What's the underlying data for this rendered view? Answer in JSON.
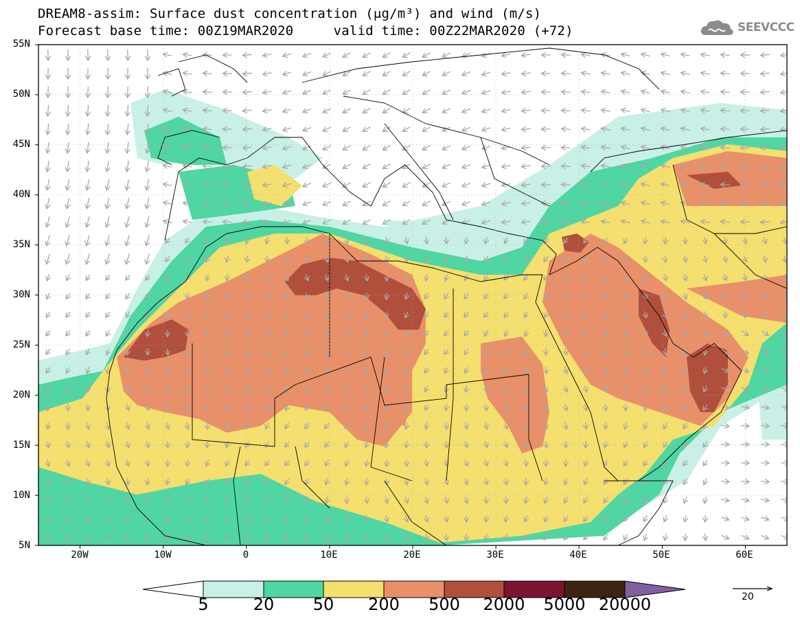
{
  "title": {
    "line1": "DREAM8-assim: Surface dust concentration (μg/m³) and wind (m/s)",
    "line2": "Forecast base time: 00Z19MAR2020     valid time: 00Z22MAR2020 (+72)"
  },
  "logo": {
    "text": "SEEVCCC",
    "icon": "cloud-icon"
  },
  "map": {
    "lat_labels": [
      "55N",
      "50N",
      "45N",
      "40N",
      "35N",
      "30N",
      "25N",
      "20N",
      "15N",
      "10N",
      "5N"
    ],
    "lon_labels": [
      "20W",
      "10W",
      "0",
      "10E",
      "20E",
      "30E",
      "40E",
      "50E",
      "60E"
    ],
    "lat_range": [
      5,
      55
    ],
    "lon_range": [
      -25,
      65
    ],
    "grid": true
  },
  "colorbar": {
    "labels": [
      "5",
      "20",
      "50",
      "200",
      "500",
      "2000",
      "5000",
      "20000"
    ],
    "colors": {
      "under": "#ffffff",
      "c5": "#c8f0e6",
      "c20": "#4fd6a2",
      "c50": "#f5df6e",
      "c200": "#e8906a",
      "c500": "#b04f3c",
      "c2000": "#7a1430",
      "c5000": "#3d2412",
      "over": "#8060a0"
    }
  },
  "wind_reference": {
    "label": "20"
  },
  "colors": {
    "wind_arrow": "#a8a8a8",
    "border": "#000000"
  }
}
